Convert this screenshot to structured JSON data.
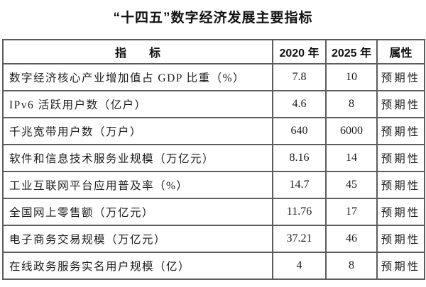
{
  "title": "“十四五”数字经济发展主要指标",
  "colors": {
    "background": "#ffffff",
    "border": "#5d5d5d",
    "text": "#1c1c1c"
  },
  "table": {
    "headers": {
      "indicator": "指　　标",
      "y2020": "2020 年",
      "y2025": "2025 年",
      "attribute": "属性"
    },
    "rows": [
      {
        "indicator": "数字经济核心产业增加值占 GDP 比重（%）",
        "y2020": "7.8",
        "y2025": "10",
        "attribute": "预期性"
      },
      {
        "indicator": "IPv6 活跃用户数（亿户）",
        "y2020": "4.6",
        "y2025": "8",
        "attribute": "预期性"
      },
      {
        "indicator": "千兆宽带用户数（万户）",
        "y2020": "640",
        "y2025": "6000",
        "attribute": "预期性"
      },
      {
        "indicator": "软件和信息技术服务业规模（万亿元）",
        "y2020": "8.16",
        "y2025": "14",
        "attribute": "预期性"
      },
      {
        "indicator": "工业互联网平台应用普及率（%）",
        "y2020": "14.7",
        "y2025": "45",
        "attribute": "预期性"
      },
      {
        "indicator": "全国网上零售额（万亿元）",
        "y2020": "11.76",
        "y2025": "17",
        "attribute": "预期性"
      },
      {
        "indicator": "电子商务交易规模（万亿元）",
        "y2020": "37.21",
        "y2025": "46",
        "attribute": "预期性"
      },
      {
        "indicator": "在线政务服务实名用户规模（亿）",
        "y2020": "4",
        "y2025": "8",
        "attribute": "预期性"
      }
    ]
  }
}
